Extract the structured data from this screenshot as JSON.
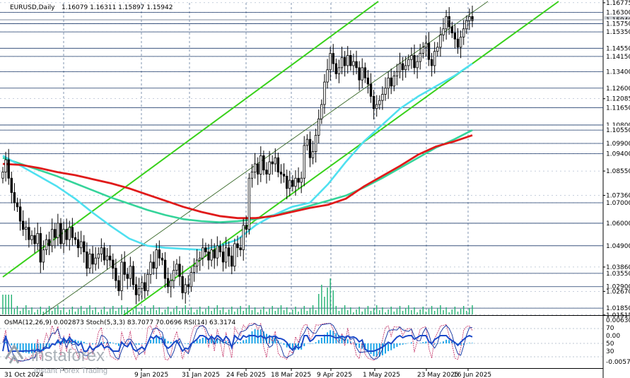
{
  "header": {
    "symbol": "EURUSD,Daily",
    "ohlc": "1.16079 1.16311 1.15897 1.15942",
    "oscillators": "OsMA(12,26,9) 0.002873  Stoch(5,3,3) 83.7077 70.0696  RSI(14) 63.3174"
  },
  "watermark": {
    "brand": "instaforex",
    "tagline": "Instant Forex Trading"
  },
  "colors": {
    "candle": "#000000",
    "ema_red": "#e01a1a",
    "ema_green": "#35d49a",
    "ema_cyan": "#4fe0f0",
    "channel": "#39d11b",
    "grid": "#2f4f7f",
    "level_line": "#1e3b6b",
    "histogram_main": "#20b070",
    "osma_bar": "#1aa4e8",
    "stoch_main": "#0b2e9e",
    "stoch_signal": "#c0225b",
    "rsi": "#1b49c9"
  },
  "chart_data": {
    "type": "candlestick",
    "ylim": [
      1.0151,
      1.1677
    ],
    "x_tick_labels": [
      "31 Oct 2024",
      "9 Jan 2025",
      "31 Jan 2025",
      "24 Feb 2025",
      "18 Mar 2025",
      "9 Apr 2025",
      "1 May 2025",
      "23 May 2025",
      "16 Jun 2025"
    ],
    "y_tick_labels": [
      "1.16775",
      "1.16300",
      "1.15940",
      "1.15750",
      "1.15350",
      "1.14550",
      "1.14150",
      "1.13400",
      "1.12600",
      "1.12085",
      "1.11650",
      "1.10800",
      "1.10550",
      "1.09900",
      "1.09400",
      "1.08550",
      "1.07360",
      "1.07000",
      "1.06000",
      "1.04900",
      "1.03860",
      "1.03550",
      "1.02900",
      "1.02670",
      "1.01850",
      "1.01515"
    ],
    "key_levels": [
      1.163,
      1.1594,
      1.1575,
      1.1535,
      1.1455,
      1.1415,
      1.134,
      1.126,
      1.1165,
      1.108,
      1.1055,
      1.099,
      1.094,
      1.07,
      1.06,
      1.049,
      1.0355,
      1.029,
      1.0185
    ],
    "current_price": 1.15942,
    "last_candle": {
      "open": 1.16079,
      "high": 1.16311,
      "low": 1.15897,
      "close": 1.15942
    },
    "closes": [
      1.085,
      1.091,
      1.082,
      1.075,
      1.07,
      1.068,
      1.061,
      1.057,
      1.058,
      1.052,
      1.054,
      1.05,
      1.055,
      1.041,
      1.047,
      1.052,
      1.049,
      1.057,
      1.053,
      1.06,
      1.05,
      1.057,
      1.052,
      1.058,
      1.053,
      1.052,
      1.048,
      1.051,
      1.046,
      1.038,
      1.045,
      1.04,
      1.043,
      1.045,
      1.048,
      1.042,
      1.044,
      1.042,
      1.038,
      1.032,
      1.027,
      1.041,
      1.035,
      1.033,
      1.039,
      1.03,
      1.025,
      1.028,
      1.031,
      1.027,
      1.035,
      1.041,
      1.038,
      1.047,
      1.043,
      1.042,
      1.033,
      1.029,
      1.032,
      1.037,
      1.04,
      1.034,
      1.026,
      1.03,
      1.029,
      1.036,
      1.039,
      1.042,
      1.043,
      1.048,
      1.046,
      1.042,
      1.047,
      1.043,
      1.049,
      1.046,
      1.041,
      1.048,
      1.044,
      1.039,
      1.05,
      1.048,
      1.047,
      1.059,
      1.057,
      1.082,
      1.085,
      1.089,
      1.084,
      1.093,
      1.086,
      1.084,
      1.09,
      1.089,
      1.092,
      1.085,
      1.084,
      1.083,
      1.077,
      1.081,
      1.078,
      1.082,
      1.08,
      1.082,
      1.098,
      1.101,
      1.092,
      1.095,
      1.103,
      1.111,
      1.118,
      1.129,
      1.135,
      1.143,
      1.138,
      1.133,
      1.136,
      1.141,
      1.137,
      1.142,
      1.137,
      1.139,
      1.136,
      1.13,
      1.136,
      1.131,
      1.128,
      1.122,
      1.116,
      1.118,
      1.12,
      1.123,
      1.126,
      1.131,
      1.127,
      1.132,
      1.134,
      1.138,
      1.135,
      1.137,
      1.14,
      1.142,
      1.136,
      1.139,
      1.143,
      1.146,
      1.148,
      1.14,
      1.137,
      1.144,
      1.146,
      1.152,
      1.155,
      1.161,
      1.156,
      1.153,
      1.15,
      1.146,
      1.151,
      1.155,
      1.159,
      1.161,
      1.159
    ],
    "ema_red": [
      1.089,
      1.0885,
      1.087,
      1.085,
      1.0835,
      1.0815,
      1.0795,
      1.077,
      1.074,
      1.071,
      1.068,
      1.0655,
      1.0635,
      1.0625,
      1.0625,
      1.0635,
      1.0655,
      1.0675,
      1.069,
      1.072,
      1.078,
      1.083,
      1.088,
      1.0935,
      1.0975,
      1.1,
      1.103
    ],
    "ema_green": [
      1.092,
      1.089,
      1.086,
      1.083,
      1.0795,
      1.076,
      1.0725,
      1.0695,
      1.0665,
      1.064,
      1.062,
      1.061,
      1.0605,
      1.061,
      1.062,
      1.064,
      1.066,
      1.0685,
      1.071,
      1.0735,
      1.0775,
      1.082,
      1.087,
      1.092,
      1.097,
      1.101,
      1.1055
    ],
    "ema_cyan": [
      1.093,
      1.088,
      1.083,
      1.078,
      1.072,
      1.065,
      1.0585,
      1.0525,
      1.049,
      1.048,
      1.0475,
      1.047,
      1.049,
      1.052,
      1.059,
      1.064,
      1.068,
      1.07,
      1.079,
      1.09,
      1.1,
      1.108,
      1.116,
      1.122,
      1.127,
      1.132,
      1.138
    ],
    "channel_upper": [
      [
        0,
        1.037
      ],
      [
        175,
        1.168
      ]
    ],
    "channel_lower": [
      [
        36,
        1.0151
      ],
      [
        175,
        1.168
      ]
    ],
    "channel_mid": [
      [
        13,
        1.0151
      ],
      [
        175,
        1.1677
      ]
    ],
    "osma_axis": {
      "top": "0.006303",
      "zero": "0.00",
      "bottom": "-0.005702",
      "stoch_levels": [
        "70",
        "50",
        "30"
      ]
    }
  }
}
